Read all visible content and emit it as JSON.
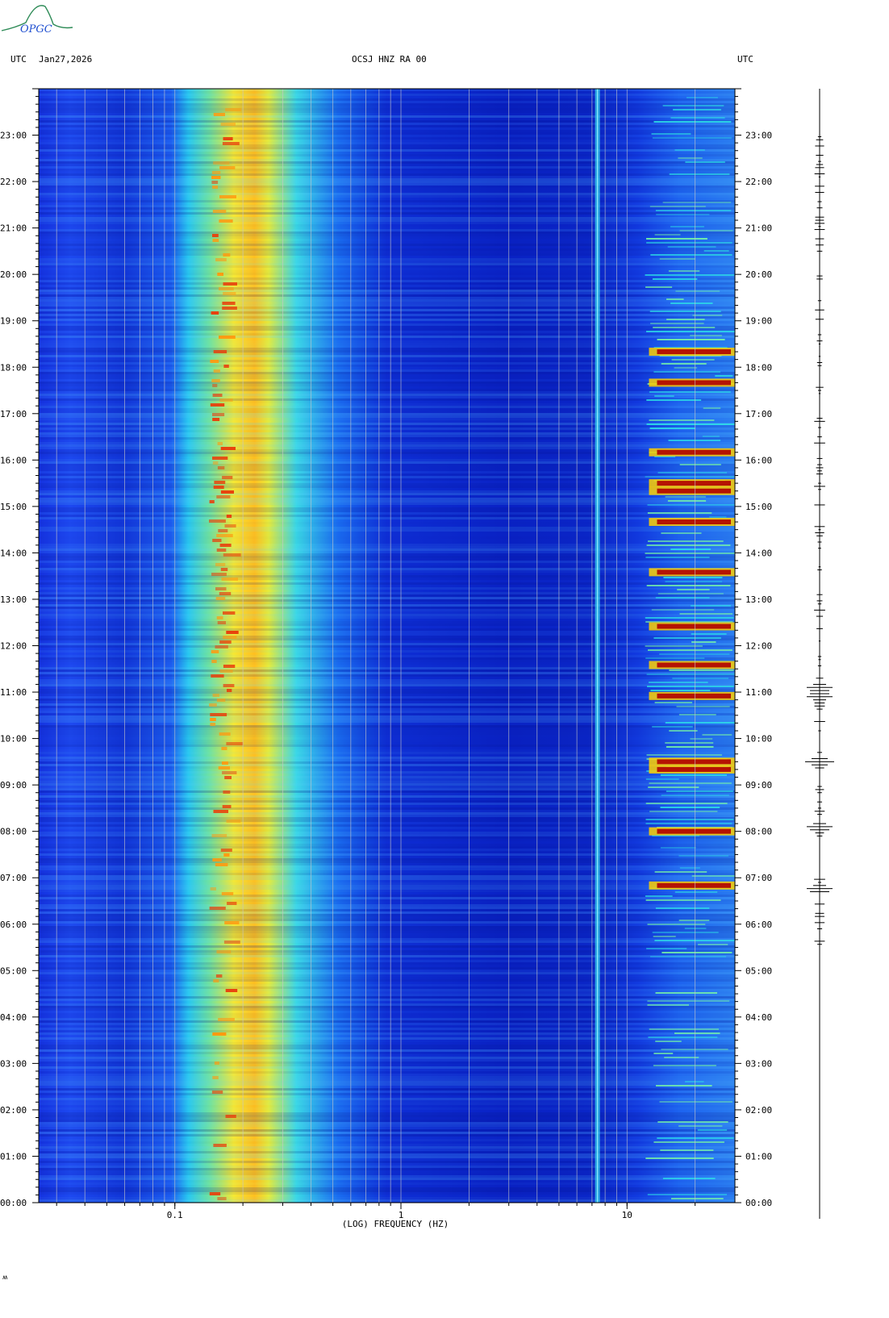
{
  "header": {
    "left_tz": "UTC",
    "date": "Jan27,2026",
    "station": "OCSJ HNZ RA 00",
    "right_tz": "UTC"
  },
  "logo": {
    "text": "OPGC"
  },
  "footer_mark": "ʍ",
  "colors": {
    "background_spectrum": "#0a21c8",
    "hot": "#c00000",
    "warm": "#ffd400"
  },
  "chart_data": {
    "type": "heatmap",
    "title": "OCSJ HNZ RA 00",
    "xlabel": "(LOG) FREQUENCY (HZ)",
    "x_scale": "log",
    "xlim": [
      0.025,
      30
    ],
    "x_ticks": [
      {
        "value": 0.1,
        "label": "0.1"
      },
      {
        "value": 1,
        "label": "1"
      },
      {
        "value": 10,
        "label": "10"
      }
    ],
    "ylabel": "UTC",
    "ylim": [
      "00:00",
      "24:00"
    ],
    "y_ticks": [
      "00:00",
      "01:00",
      "02:00",
      "03:00",
      "04:00",
      "05:00",
      "06:00",
      "07:00",
      "08:00",
      "09:00",
      "10:00",
      "11:00",
      "12:00",
      "13:00",
      "14:00",
      "15:00",
      "16:00",
      "17:00",
      "18:00",
      "19:00",
      "20:00",
      "21:00",
      "22:00",
      "23:00"
    ],
    "grid_frequencies_hz": [
      0.03,
      0.04,
      0.05,
      0.06,
      0.07,
      0.08,
      0.09,
      0.1,
      0.2,
      0.3,
      0.4,
      0.5,
      0.6,
      0.7,
      0.8,
      0.9,
      1,
      2,
      3,
      4,
      5,
      6,
      7,
      8,
      9,
      10,
      20
    ],
    "microseism_band_hz": [
      0.12,
      0.2
    ],
    "microseism_peak_hz": 0.15,
    "tremor_line_hz": 7.4,
    "high_freq_band_hz": [
      12,
      30
    ],
    "strong_events_utc": [
      "06:50",
      "08:00",
      "09:20",
      "09:30",
      "10:55",
      "11:35",
      "12:25",
      "13:35",
      "14:40",
      "15:20",
      "15:30",
      "16:10",
      "17:40",
      "18:20"
    ],
    "seismogram_events_utc": [
      "06:45",
      "08:05",
      "09:30",
      "10:55",
      "11:05"
    ]
  }
}
